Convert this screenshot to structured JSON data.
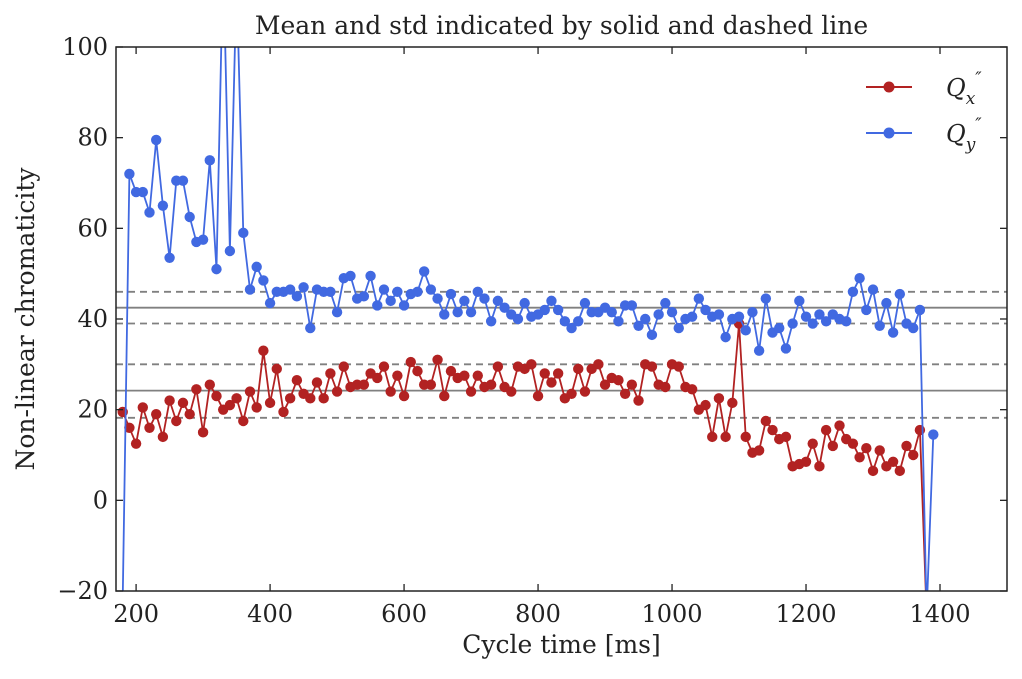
{
  "chart_data": {
    "type": "line",
    "title": "Mean and std indicated by solid and dashed line",
    "xlabel": "Cycle time [ms]",
    "ylabel": "Non-linear chromaticity",
    "xlim": [
      170,
      1500
    ],
    "ylim": [
      -20,
      100
    ],
    "xticks": [
      200,
      400,
      600,
      800,
      1000,
      1200,
      1400
    ],
    "yticks": [
      -20,
      0,
      20,
      40,
      60,
      80,
      100
    ],
    "ytick_labels": [
      "−20",
      "0",
      "20",
      "40",
      "60",
      "80",
      "100"
    ],
    "legend_position": "top-right",
    "grid": false,
    "reference_lines": [
      {
        "kind": "mean",
        "style": "solid",
        "y": 42.5
      },
      {
        "kind": "std",
        "style": "dashed",
        "y": 46
      },
      {
        "kind": "std",
        "style": "dashed",
        "y": 39
      },
      {
        "kind": "mean",
        "style": "solid",
        "y": 24.2
      },
      {
        "kind": "std",
        "style": "dashed",
        "y": 30
      },
      {
        "kind": "std",
        "style": "dashed",
        "y": 18.2
      }
    ],
    "reference_color": "#808080",
    "series": [
      {
        "name": "Q_x''",
        "color": "#b22222",
        "x": [
          180,
          190,
          200,
          210,
          220,
          230,
          240,
          250,
          260,
          270,
          280,
          290,
          300,
          310,
          320,
          330,
          340,
          350,
          360,
          370,
          380,
          390,
          400,
          410,
          420,
          430,
          440,
          450,
          460,
          470,
          480,
          490,
          500,
          510,
          520,
          530,
          540,
          550,
          560,
          570,
          580,
          590,
          600,
          610,
          620,
          630,
          640,
          650,
          660,
          670,
          680,
          690,
          700,
          710,
          720,
          730,
          740,
          750,
          760,
          770,
          780,
          790,
          800,
          810,
          820,
          830,
          840,
          850,
          860,
          870,
          880,
          890,
          900,
          910,
          920,
          930,
          940,
          950,
          960,
          970,
          980,
          990,
          1000,
          1010,
          1020,
          1030,
          1040,
          1050,
          1060,
          1070,
          1080,
          1090,
          1100,
          1110,
          1120,
          1130,
          1140,
          1150,
          1160,
          1170,
          1180,
          1190,
          1200,
          1210,
          1220,
          1230,
          1240,
          1250,
          1260,
          1270,
          1280,
          1290,
          1300,
          1310,
          1320,
          1330,
          1340,
          1350,
          1360,
          1370,
          1380
        ],
        "y": [
          19.5,
          16,
          12.5,
          20.5,
          16,
          19,
          14,
          22,
          17.5,
          21.5,
          19,
          24.5,
          15,
          25.5,
          23,
          20,
          21,
          22.5,
          17.5,
          24,
          20.5,
          33,
          21.5,
          29,
          19.5,
          22.5,
          26.5,
          23.5,
          22.5,
          26,
          22.5,
          28,
          24,
          29.5,
          25,
          25.5,
          25.5,
          28,
          27,
          29.5,
          24,
          27.5,
          23,
          30.5,
          28.5,
          25.5,
          25.5,
          31,
          23,
          28.5,
          27,
          27.5,
          24,
          27.5,
          25,
          25.5,
          29.5,
          25,
          24,
          29.5,
          29,
          30,
          23,
          28,
          26,
          28,
          22.5,
          23.5,
          29,
          24,
          29,
          30,
          25.5,
          27,
          26.5,
          23.5,
          25.5,
          22,
          30,
          29.5,
          25.5,
          25,
          30,
          29.5,
          25,
          24.5,
          20,
          21,
          14,
          22.5,
          14,
          21.5,
          39,
          14,
          10.5,
          11,
          17.5,
          15.5,
          13.5,
          14,
          7.5,
          8,
          8.5,
          12.5,
          7.5,
          15.5,
          12,
          16.5,
          13.5,
          12.5,
          9.5,
          11.5,
          6.5,
          11,
          7.5,
          8.5,
          6.5,
          12,
          10,
          15.5,
          -25
        ]
      },
      {
        "name": "Q_y''",
        "color": "#4169e1",
        "x": [
          180,
          190,
          200,
          210,
          220,
          230,
          240,
          250,
          260,
          270,
          280,
          290,
          300,
          310,
          320,
          330,
          340,
          350,
          360,
          370,
          380,
          390,
          400,
          410,
          420,
          430,
          440,
          450,
          460,
          470,
          480,
          490,
          500,
          510,
          520,
          530,
          540,
          550,
          560,
          570,
          580,
          590,
          600,
          610,
          620,
          630,
          640,
          650,
          660,
          670,
          680,
          690,
          700,
          710,
          720,
          730,
          740,
          750,
          760,
          770,
          780,
          790,
          800,
          810,
          820,
          830,
          840,
          850,
          860,
          870,
          880,
          890,
          900,
          910,
          920,
          930,
          940,
          950,
          960,
          970,
          980,
          990,
          1000,
          1010,
          1020,
          1030,
          1040,
          1050,
          1060,
          1070,
          1080,
          1090,
          1100,
          1110,
          1120,
          1130,
          1140,
          1150,
          1160,
          1170,
          1180,
          1190,
          1200,
          1210,
          1220,
          1230,
          1240,
          1250,
          1260,
          1270,
          1280,
          1290,
          1300,
          1310,
          1320,
          1330,
          1340,
          1350,
          1360,
          1370,
          1380,
          1390
        ],
        "y": [
          -22,
          72,
          68,
          68,
          63.5,
          79.5,
          65,
          53.5,
          70.5,
          70.5,
          62.5,
          57,
          57.5,
          75,
          51,
          120,
          55,
          115,
          59,
          46.5,
          51.5,
          48.5,
          43.5,
          46,
          46,
          46.5,
          45,
          47,
          38,
          46.5,
          46,
          46,
          41.5,
          49,
          49.5,
          44.5,
          45,
          49.5,
          43,
          46.5,
          44,
          46,
          43,
          45.5,
          46,
          50.5,
          46.5,
          44.5,
          41,
          45.5,
          41.5,
          44,
          41.5,
          46,
          44.5,
          39.5,
          44,
          42.5,
          41,
          40,
          43.5,
          40.5,
          41,
          42,
          44,
          42,
          39.5,
          38,
          39.5,
          43.5,
          41.5,
          41.5,
          42.5,
          41.5,
          39.5,
          43,
          43,
          38.5,
          40,
          36.5,
          41,
          43.5,
          41.5,
          38,
          40,
          40.5,
          44.5,
          42,
          40.5,
          41,
          36,
          40,
          40.5,
          37.5,
          41.5,
          33,
          44.5,
          37,
          38,
          33.5,
          39,
          44,
          40.5,
          39,
          41,
          39.5,
          41,
          40,
          39.5,
          46,
          49,
          42,
          46.5,
          38.5,
          43.5,
          37,
          45.5,
          39,
          38,
          42,
          -25,
          14.5
        ]
      }
    ]
  }
}
